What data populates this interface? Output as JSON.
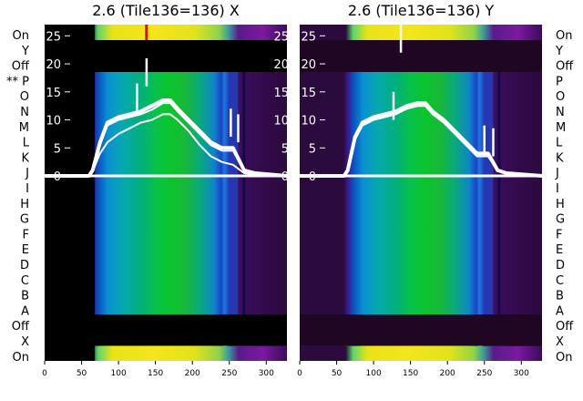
{
  "panels": [
    {
      "title": "2.6 (Tile136=136) X",
      "row_labels_side": "left",
      "row_labels": [
        "On",
        "Y",
        "Off",
        "** P",
        "O",
        "N",
        "M",
        "L",
        "K",
        "J",
        "I",
        "H",
        "G",
        "F",
        "E",
        "D",
        "C",
        "B",
        "A",
        "Off",
        "X",
        "On"
      ],
      "dark_columns": [
        0,
        68
      ]
    },
    {
      "title": "2.6 (Tile136=136) Y",
      "row_labels_side": "right",
      "row_labels": [
        "On",
        "Y",
        "Off",
        "P",
        "O",
        "N",
        "M",
        "L",
        "K",
        "J",
        "I",
        "H",
        "G",
        "F",
        "E",
        "D",
        "C",
        "B",
        "A",
        "Off",
        "X",
        "On"
      ],
      "dark_columns": null
    }
  ],
  "chart_data": [
    {
      "type": "heatmap",
      "title": "2.6 (Tile136=136) X",
      "x_ticks": [
        0,
        50,
        100,
        150,
        200,
        250,
        300
      ],
      "xlim": [
        0,
        328
      ],
      "y_ticks": [
        0,
        5,
        10,
        15,
        20,
        25
      ],
      "ylim": [
        -33,
        27
      ],
      "row_labels": [
        "On",
        "Y",
        "Off",
        "** P",
        "O",
        "N",
        "M",
        "L",
        "K",
        "J",
        "I",
        "H",
        "G",
        "F",
        "E",
        "D",
        "C",
        "B",
        "A",
        "Off",
        "X",
        "On"
      ],
      "colormap": "viridis-to-yellow",
      "accent_colors": {
        "line": "#ffffff",
        "hot_column": "#dd1111",
        "dark_band": "#000000"
      },
      "series": [
        {
          "x": [
            0,
            60,
            65,
            75,
            85,
            100,
            115,
            130,
            145,
            160,
            170,
            180,
            195,
            210,
            225,
            240,
            255,
            270,
            285,
            328
          ],
          "y": [
            0,
            0,
            1,
            6,
            9.5,
            10.5,
            11,
            11.5,
            12.5,
            13.5,
            13.5,
            12,
            10,
            8,
            6,
            5,
            5,
            1,
            0.5,
            0
          ]
        },
        {
          "x": [
            0,
            60,
            65,
            75,
            85,
            100,
            115,
            130,
            145,
            160,
            170,
            180,
            195,
            210,
            225,
            240,
            255,
            270,
            285,
            328
          ],
          "y": [
            0,
            0,
            1,
            5.5,
            9,
            10,
            10.5,
            11,
            11.8,
            13,
            13,
            11.5,
            9.5,
            7.5,
            5.5,
            4.5,
            4.5,
            1,
            0.5,
            0
          ]
        },
        {
          "x": [
            0,
            60,
            65,
            75,
            85,
            100,
            115,
            130,
            145,
            160,
            170,
            180,
            195,
            210,
            225,
            240,
            255,
            270,
            285,
            328
          ],
          "y": [
            0,
            0,
            0.8,
            4,
            6,
            7.5,
            8.5,
            9.5,
            10,
            11,
            11,
            10,
            8,
            5.5,
            3.5,
            2.5,
            2,
            0.5,
            0.3,
            0
          ]
        }
      ],
      "spikes": [
        {
          "x": 125,
          "y": 16.5
        },
        {
          "x": 138,
          "y": 21
        },
        {
          "x": 252,
          "y": 12
        },
        {
          "x": 262,
          "y": 11
        }
      ]
    },
    {
      "type": "heatmap",
      "title": "2.6 (Tile136=136) Y",
      "x_ticks": [
        0,
        50,
        100,
        150,
        200,
        250,
        300
      ],
      "xlim": [
        0,
        328
      ],
      "y_ticks": [
        0,
        5,
        10,
        15,
        20,
        25
      ],
      "ylim": [
        -33,
        27
      ],
      "row_labels": [
        "On",
        "Y",
        "Off",
        "P",
        "O",
        "N",
        "M",
        "L",
        "K",
        "J",
        "I",
        "H",
        "G",
        "F",
        "E",
        "D",
        "C",
        "B",
        "A",
        "Off",
        "X",
        "On"
      ],
      "colormap": "viridis-to-yellow",
      "accent_colors": {
        "line": "#ffffff",
        "dark_band": "#2a0a2e"
      },
      "series": [
        {
          "x": [
            0,
            60,
            65,
            75,
            85,
            100,
            115,
            130,
            145,
            160,
            170,
            180,
            195,
            210,
            225,
            240,
            255,
            268,
            280,
            328
          ],
          "y": [
            0,
            0,
            1,
            7,
            9.5,
            10.5,
            11,
            11.5,
            12.5,
            13,
            13,
            11.5,
            10,
            8,
            6,
            4,
            4,
            1,
            0.5,
            0
          ]
        },
        {
          "x": [
            0,
            60,
            65,
            75,
            85,
            100,
            115,
            130,
            145,
            160,
            170,
            180,
            195,
            210,
            225,
            240,
            255,
            268,
            280,
            328
          ],
          "y": [
            0,
            0,
            1,
            6.5,
            9,
            10,
            10.5,
            11,
            12,
            12.5,
            12.5,
            11,
            9.5,
            7.5,
            5.5,
            3.5,
            3.5,
            1,
            0.5,
            0
          ]
        }
      ],
      "spikes": [
        {
          "x": 127,
          "y": 15
        },
        {
          "x": 137,
          "y": 27
        },
        {
          "x": 250,
          "y": 9
        },
        {
          "x": 262,
          "y": 8.5
        }
      ]
    }
  ]
}
